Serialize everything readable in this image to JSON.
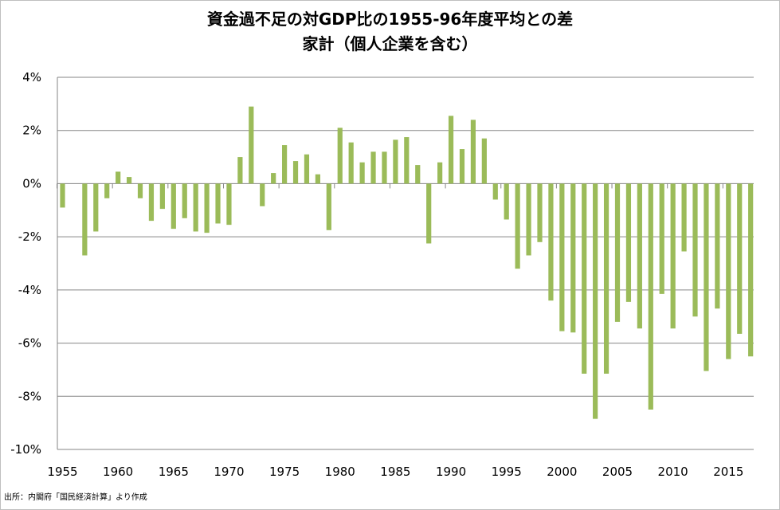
{
  "chart_data": {
    "type": "bar",
    "title": "資金過不足の対GDP比の1955-96年度平均との差",
    "subtitle": "家計（個人企業を含む）",
    "xlabel": "",
    "ylabel": "",
    "ylim": [
      -10,
      4
    ],
    "y_ticks": [
      4,
      2,
      0,
      -2,
      -4,
      -6,
      -8,
      -10
    ],
    "y_tick_labels": [
      "4%",
      "2%",
      "0%",
      "-2%",
      "-4%",
      "-6%",
      "-8%",
      "-10%"
    ],
    "x_tick_labels": [
      "1955",
      "1960",
      "1965",
      "1970",
      "1975",
      "1980",
      "1985",
      "1990",
      "1995",
      "2000",
      "2005",
      "2010",
      "2015"
    ],
    "grid": true,
    "legend": "none",
    "bar_color": "#9bbb59",
    "categories": [
      1955,
      1956,
      1957,
      1958,
      1959,
      1960,
      1961,
      1962,
      1963,
      1964,
      1965,
      1966,
      1967,
      1968,
      1969,
      1970,
      1971,
      1972,
      1973,
      1974,
      1975,
      1976,
      1977,
      1978,
      1979,
      1980,
      1981,
      1982,
      1983,
      1984,
      1985,
      1986,
      1987,
      1988,
      1989,
      1990,
      1991,
      1992,
      1993,
      1994,
      1995,
      1996,
      1997,
      1998,
      1999,
      2000,
      2001,
      2002,
      2003,
      2004,
      2005,
      2006,
      2007,
      2008,
      2009,
      2010,
      2011,
      2012,
      2013,
      2014,
      2015,
      2016,
      2017
    ],
    "values": [
      -0.9,
      0,
      -2.7,
      -1.8,
      -0.55,
      0.45,
      0.25,
      -0.55,
      -1.4,
      -0.95,
      -1.7,
      -1.3,
      -1.8,
      -1.85,
      -1.5,
      -1.55,
      1.0,
      2.9,
      -0.85,
      0.4,
      1.45,
      0.85,
      1.1,
      0.35,
      -1.75,
      2.1,
      1.55,
      0.8,
      1.2,
      1.2,
      1.65,
      1.75,
      0.7,
      -2.25,
      0.8,
      2.55,
      1.3,
      2.4,
      1.7,
      -0.6,
      -1.35,
      -3.2,
      -2.7,
      -2.2,
      -4.4,
      -5.55,
      -5.6,
      -7.15,
      -8.85,
      -7.15,
      -5.2,
      -4.45,
      -5.45,
      -8.5,
      -4.15,
      -5.45,
      -2.55,
      -5.0,
      -7.05,
      -4.7,
      -6.6,
      -5.65,
      -6.5
    ]
  },
  "source": "出所：内閣府「国民経済計算」より作成"
}
